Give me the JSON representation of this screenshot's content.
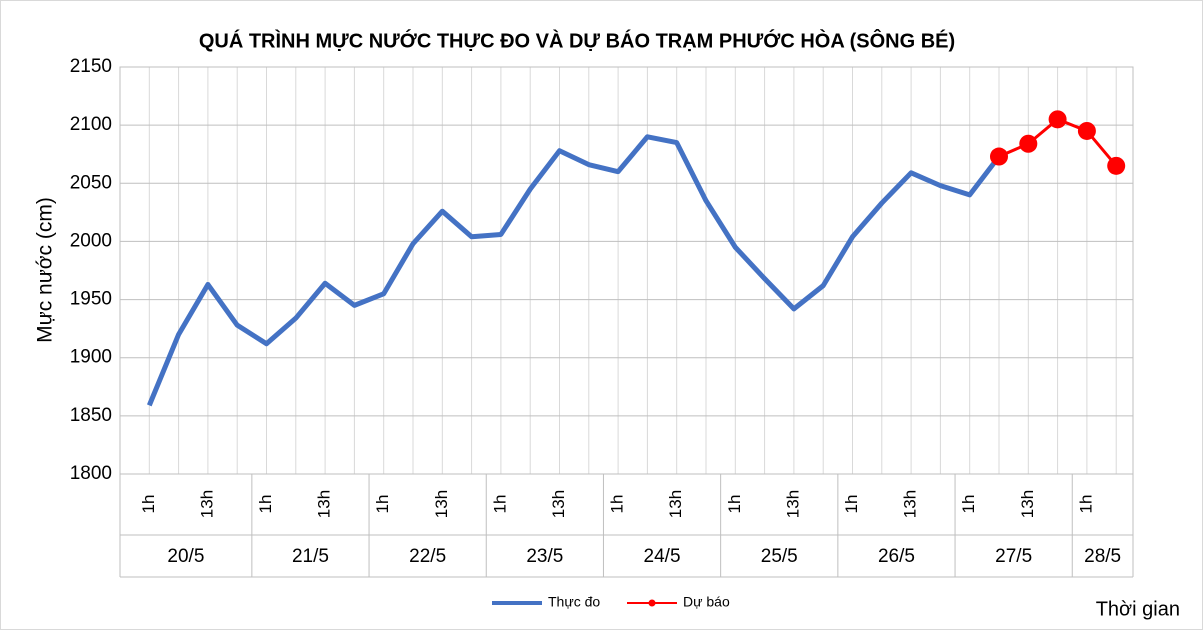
{
  "chart_data": {
    "type": "line",
    "title": "QUÁ TRÌNH MỰC NƯỚC THỰC ĐO VÀ DỰ BÁO TRẠM PHƯỚC HÒA (SÔNG BÉ)",
    "ylabel": "Mực nước (cm)",
    "xlabel": "Thời gian",
    "categories": [
      "1h",
      null,
      "13h",
      null,
      "1h",
      null,
      "13h",
      null,
      "1h",
      null,
      "13h",
      null,
      "1h",
      null,
      "13h",
      null,
      "1h",
      null,
      "13h",
      null,
      "1h",
      null,
      "13h",
      null,
      "1h",
      null,
      "13h",
      null,
      "1h",
      null,
      "13h",
      null,
      "1h",
      null
    ],
    "groups": [
      {
        "label": "20/5",
        "size": 4
      },
      {
        "label": "21/5",
        "size": 4
      },
      {
        "label": "22/5",
        "size": 4
      },
      {
        "label": "23/5",
        "size": 4
      },
      {
        "label": "24/5",
        "size": 4
      },
      {
        "label": "25/5",
        "size": 4
      },
      {
        "label": "26/5",
        "size": 4
      },
      {
        "label": "27/5",
        "size": 4
      },
      {
        "label": "28/5",
        "size": 2
      }
    ],
    "series": [
      {
        "name": "Thực đo",
        "color": "#4472c4",
        "values": [
          1859,
          1920,
          1963,
          1928,
          1912,
          1934,
          1964,
          1945,
          1955,
          1998,
          2026,
          2004,
          2006,
          2045,
          2078,
          2066,
          2060,
          2090,
          2085,
          2035,
          1995,
          1968,
          1942,
          1962,
          2004,
          2033,
          2059,
          2048,
          2040,
          2073,
          null,
          null,
          null,
          null
        ]
      },
      {
        "name": "Dự báo",
        "color": "#ff0000",
        "markers": true,
        "values": [
          null,
          null,
          null,
          null,
          null,
          null,
          null,
          null,
          null,
          null,
          null,
          null,
          null,
          null,
          null,
          null,
          null,
          null,
          null,
          null,
          null,
          null,
          null,
          null,
          null,
          null,
          null,
          null,
          null,
          2073,
          2084,
          2105,
          2095,
          2065
        ]
      }
    ],
    "ylim": [
      1800,
      2150
    ],
    "yticks": [
      1800,
      1850,
      1900,
      1950,
      2000,
      2050,
      2100,
      2150
    ],
    "grid": true,
    "legend": "bottom"
  }
}
